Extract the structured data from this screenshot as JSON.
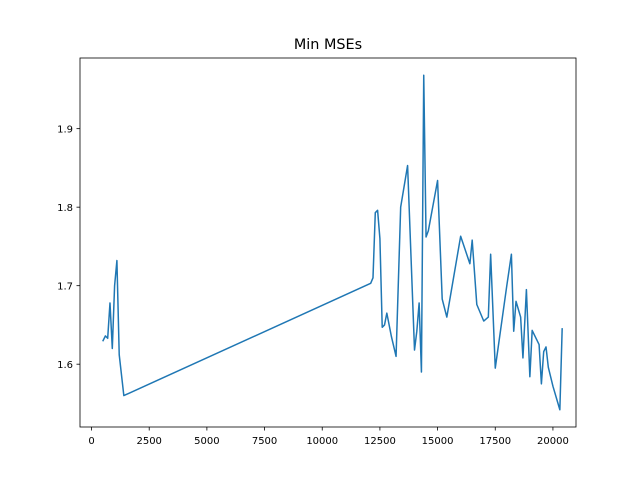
{
  "chart_data": {
    "type": "line",
    "title": "Min MSEs",
    "xlabel": "",
    "ylabel": "",
    "xlim": [
      -500,
      21000
    ],
    "ylim": [
      1.52,
      1.99
    ],
    "xticks": [
      0,
      2500,
      5000,
      7500,
      10000,
      12500,
      15000,
      17500,
      20000
    ],
    "xtick_labels": [
      "0",
      "2500",
      "5000",
      "7500",
      "10000",
      "12500",
      "15000",
      "17500",
      "20000"
    ],
    "yticks": [
      1.6,
      1.7,
      1.8,
      1.9
    ],
    "ytick_labels": [
      "1.6",
      "1.7",
      "1.8",
      "1.9"
    ],
    "grid": false,
    "legend": "none",
    "series": [
      {
        "color": "#1f77b4",
        "x": [
          500,
          600,
          700,
          800,
          900,
          1000,
          1100,
          1200,
          1400,
          12100,
          12200,
          12300,
          12400,
          12500,
          12600,
          12700,
          12800,
          13000,
          13200,
          13400,
          13700,
          14000,
          14100,
          14200,
          14300,
          14400,
          14500,
          14600,
          15000,
          15200,
          15400,
          16000,
          16400,
          16500,
          16700,
          17000,
          17200,
          17300,
          17500,
          18000,
          18200,
          18300,
          18400,
          18600,
          18700,
          18850,
          19000,
          19100,
          19400,
          19500,
          19600,
          19700,
          19800,
          20000,
          20300,
          20400
        ],
        "y": [
          1.63,
          1.636,
          1.633,
          1.678,
          1.62,
          1.7,
          1.732,
          1.612,
          1.56,
          1.703,
          1.71,
          1.793,
          1.796,
          1.76,
          1.647,
          1.65,
          1.665,
          1.635,
          1.61,
          1.8,
          1.853,
          1.618,
          1.642,
          1.678,
          1.59,
          1.968,
          1.762,
          1.77,
          1.834,
          1.683,
          1.66,
          1.763,
          1.728,
          1.758,
          1.676,
          1.655,
          1.66,
          1.74,
          1.595,
          1.7,
          1.74,
          1.642,
          1.68,
          1.66,
          1.608,
          1.695,
          1.584,
          1.643,
          1.625,
          1.575,
          1.616,
          1.622,
          1.596,
          1.572,
          1.542,
          1.645
        ]
      }
    ]
  }
}
